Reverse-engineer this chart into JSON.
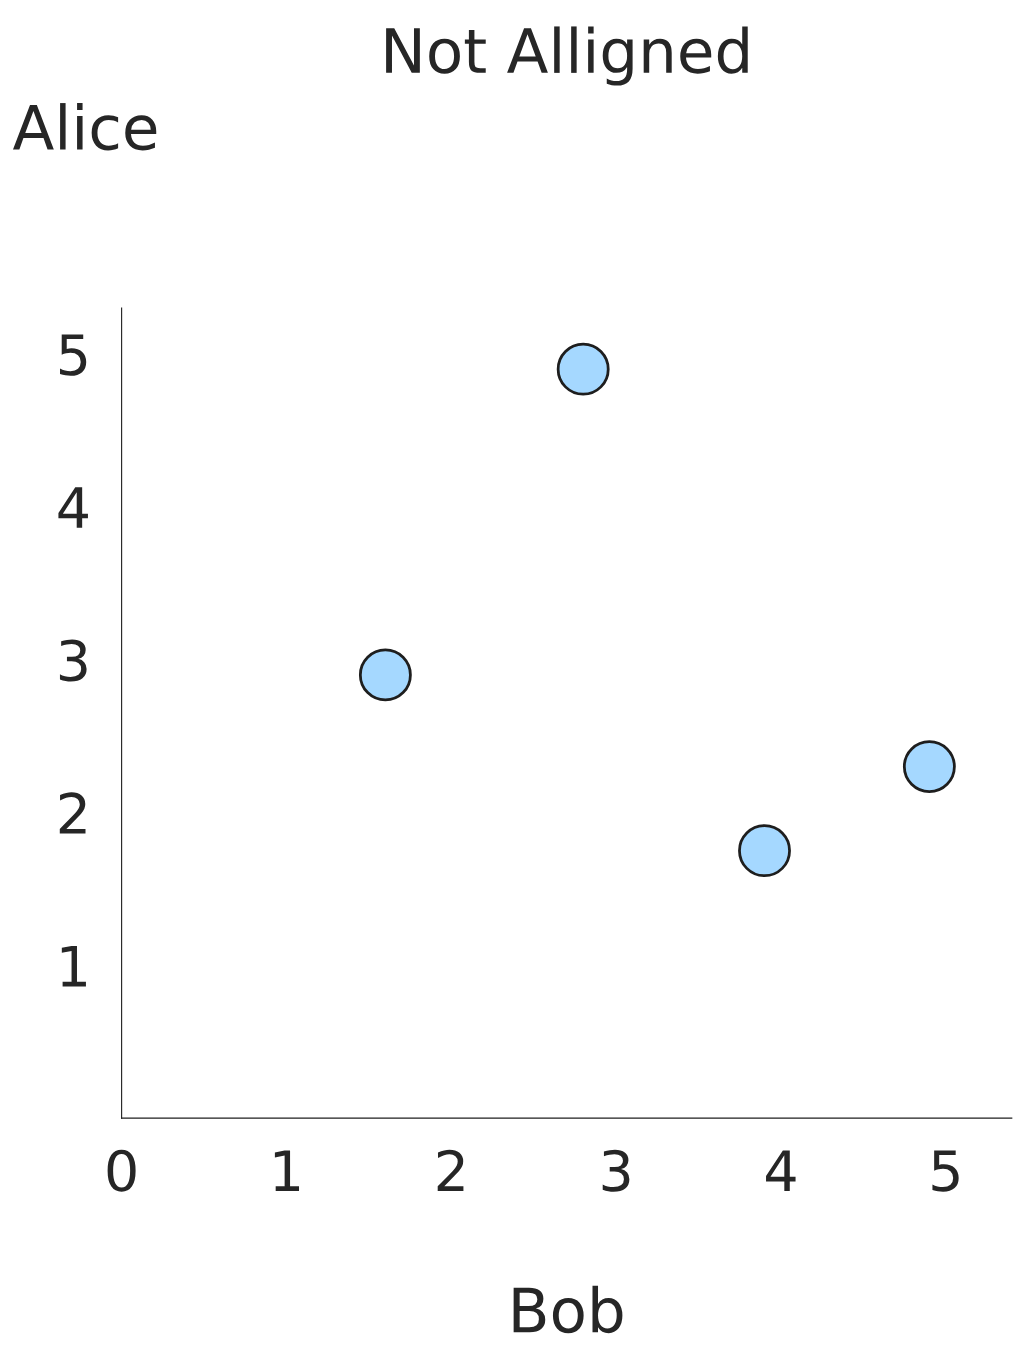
{
  "chart_data": {
    "type": "scatter",
    "title": "Not Alligned",
    "xlabel": "Bob",
    "ylabel": "Alice",
    "x": [
      1.6,
      2.8,
      3.9,
      4.9
    ],
    "series": [
      {
        "color": "#a5d8ff",
        "values": [
          2.9,
          4.9,
          1.75,
          2.3
        ]
      }
    ],
    "xlim": [
      0,
      5.4
    ],
    "ylim": [
      0,
      5.3
    ],
    "xticks": [
      0,
      1,
      2,
      3,
      4,
      5
    ],
    "yticks": [
      1,
      2,
      3,
      4,
      5
    ],
    "marker": "circle",
    "grid": false,
    "legend": false
  }
}
